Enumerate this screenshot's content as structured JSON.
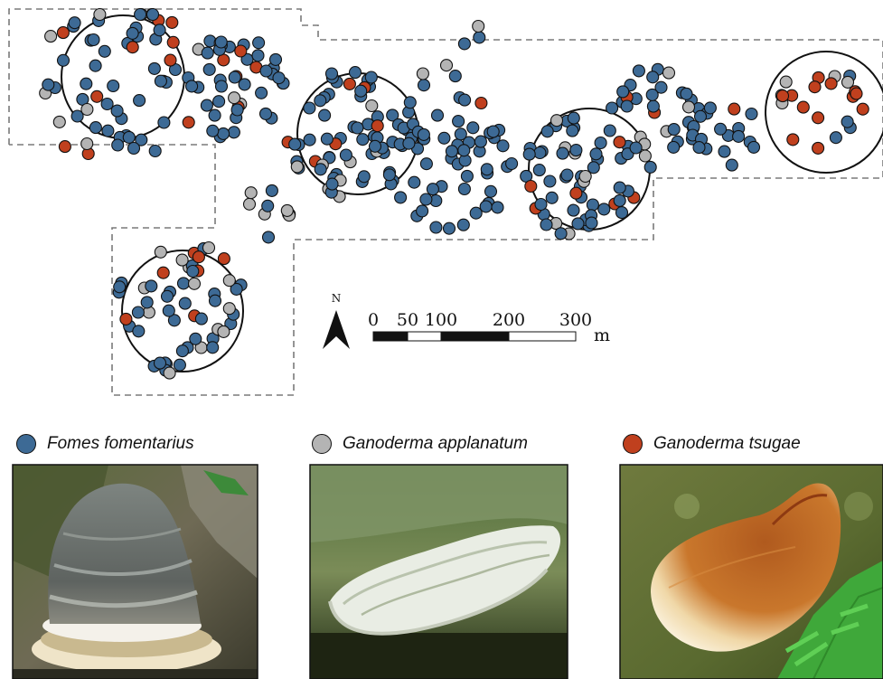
{
  "colors": {
    "fomes": "#3d6a95",
    "applanatum": "#b4b4b4",
    "tsugae": "#c0401e",
    "outline": "#111111",
    "boundary": "#7a7a7a"
  },
  "north_arrow": {
    "label": "N"
  },
  "scale_bar": {
    "tick_labels": [
      "0",
      "50",
      "100",
      "200",
      "300"
    ],
    "unit": "m"
  },
  "legend": [
    {
      "species": "fomes",
      "label": "Fomes fomentarius"
    },
    {
      "species": "applanatum",
      "label": "Ganoderma applanatum"
    },
    {
      "species": "tsugae",
      "label": "Ganoderma tsugae"
    }
  ],
  "photos": [
    {
      "species": "fomes",
      "subject": "hoof-shaped grey bracket fungus on bark"
    },
    {
      "species": "applanatum",
      "subject": "flat pale shelf fungus on mossy log"
    },
    {
      "species": "tsugae",
      "subject": "glossy reddish bracket fungus with fern"
    }
  ]
}
